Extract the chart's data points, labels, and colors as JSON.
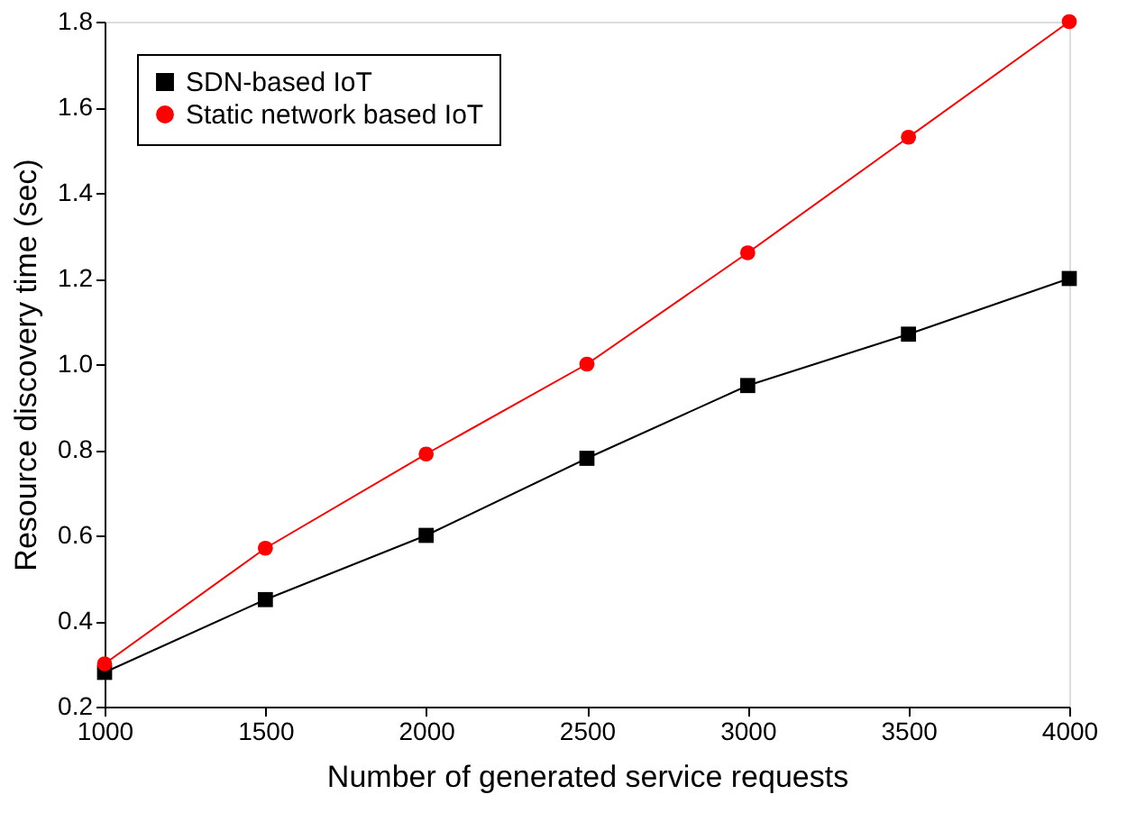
{
  "chart_data": {
    "type": "line",
    "xlabel": "Number of generated service requests",
    "ylabel": "Resource discovery time (sec)",
    "x": [
      1000,
      1500,
      2000,
      2500,
      3000,
      3500,
      4000
    ],
    "series": [
      {
        "name": "SDN-based IoT",
        "color": "#000000",
        "marker": "square",
        "values": [
          0.28,
          0.45,
          0.6,
          0.78,
          0.95,
          1.07,
          1.2
        ]
      },
      {
        "name": "Static network based IoT",
        "color": "#ff0000",
        "marker": "circle",
        "values": [
          0.3,
          0.57,
          0.79,
          1.0,
          1.26,
          1.53,
          1.8
        ]
      }
    ],
    "xlim": [
      1000,
      4000
    ],
    "xticks": [
      1000,
      1500,
      2000,
      2500,
      3000,
      3500,
      4000
    ],
    "ylim": [
      0.2,
      1.8
    ],
    "yticks": [
      0.2,
      0.4,
      0.6,
      0.8,
      {
        "value": 1.0,
        "label": "1.0"
      },
      1.2,
      1.4,
      1.6,
      1.8
    ],
    "grid": false,
    "legend": "top left",
    "line_style": "solid"
  }
}
